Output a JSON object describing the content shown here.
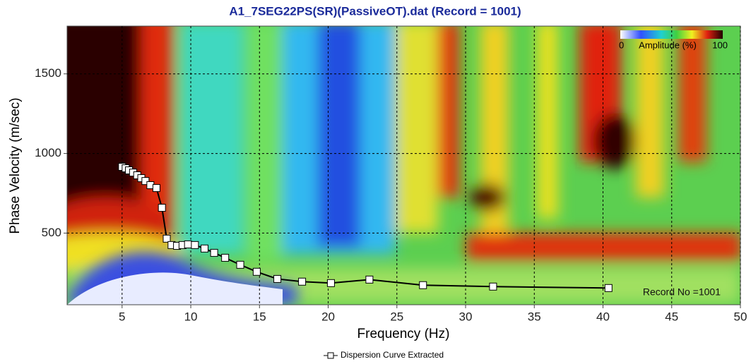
{
  "chart_data": {
    "type": "line",
    "title": "A1_7SEG22PS(SR)(PassiveOT).dat (Record = 1001)",
    "x_label": "Frequency (Hz)",
    "y_label": "Phase Velocity (m/sec)",
    "xlim": [
      1,
      50
    ],
    "ylim": [
      50,
      1800
    ],
    "xticks": [
      5,
      10,
      15,
      20,
      25,
      30,
      35,
      40,
      45,
      50
    ],
    "yticks": [
      500,
      1000,
      1500
    ],
    "grid": true,
    "colorbar": {
      "min_label": "0",
      "title": "Amplitude (%)",
      "max_label": "100"
    },
    "annotation": "Record No =1001",
    "series": [
      {
        "name": "Dispersion Curve Extracted",
        "color": "#000000",
        "x": [
          5.0,
          5.26,
          5.5,
          5.8,
          6.1,
          6.4,
          6.7,
          7.06,
          7.5,
          7.9,
          8.25,
          8.6,
          9.0,
          9.4,
          9.8,
          10.3,
          11.0,
          11.7,
          12.5,
          13.6,
          14.8,
          16.3,
          18.1,
          20.2,
          23.0,
          26.9,
          32.0,
          40.4
        ],
        "values": [
          916,
          907,
          894,
          880,
          863,
          845,
          827,
          801,
          783,
          659,
          465,
          425,
          420,
          425,
          429,
          425,
          403,
          376,
          345,
          301,
          257,
          212,
          195,
          186,
          208,
          173,
          164,
          155
        ]
      }
    ]
  }
}
